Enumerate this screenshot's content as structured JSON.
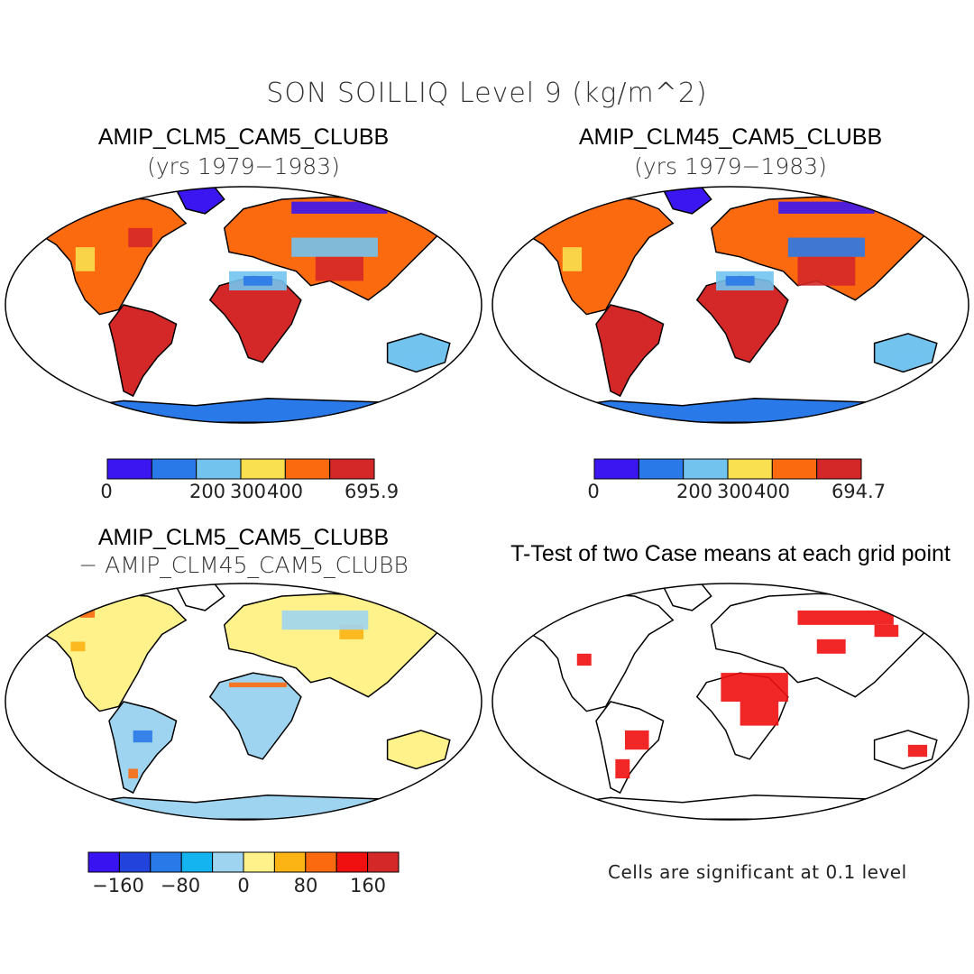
{
  "figure": {
    "title": "SON SOILLIQ Level 9 (kg/m^2)"
  },
  "panels": [
    {
      "title": "AMIP_CLM5_CAM5_CLUBB",
      "subtitle": "(yrs 1979−1983)",
      "colorbar": {
        "colors": [
          "#3b16f0",
          "#2a79e8",
          "#72c3ee",
          "#f8e050",
          "#fc6a10",
          "#d42828"
        ],
        "labels": [
          "0",
          "200",
          "300",
          "400",
          "695.9"
        ]
      }
    },
    {
      "title": "AMIP_CLM45_CAM5_CLUBB",
      "subtitle": "(yrs 1979−1983)",
      "colorbar": {
        "colors": [
          "#3b16f0",
          "#2a79e8",
          "#72c3ee",
          "#f8e050",
          "#fc6a10",
          "#d42828"
        ],
        "labels": [
          "0",
          "200",
          "300",
          "400",
          "694.7"
        ]
      }
    },
    {
      "title": "AMIP_CLM5_CAM5_CLUBB",
      "subtitle": "− AMIP_CLM45_CAM5_CLUBB",
      "colorbar": {
        "colors": [
          "#3a14f0",
          "#2244dd",
          "#2a79e8",
          "#14b4f0",
          "#9ed4f0",
          "#fff28a",
          "#fcb414",
          "#fc6a10",
          "#f01010",
          "#d42828"
        ],
        "labels": [
          "−160",
          "−80",
          "0",
          "80",
          "160"
        ]
      }
    },
    {
      "title": "T-Test of two Case means at each grid point",
      "note": "Cells are significant at 0.1 level"
    }
  ]
}
